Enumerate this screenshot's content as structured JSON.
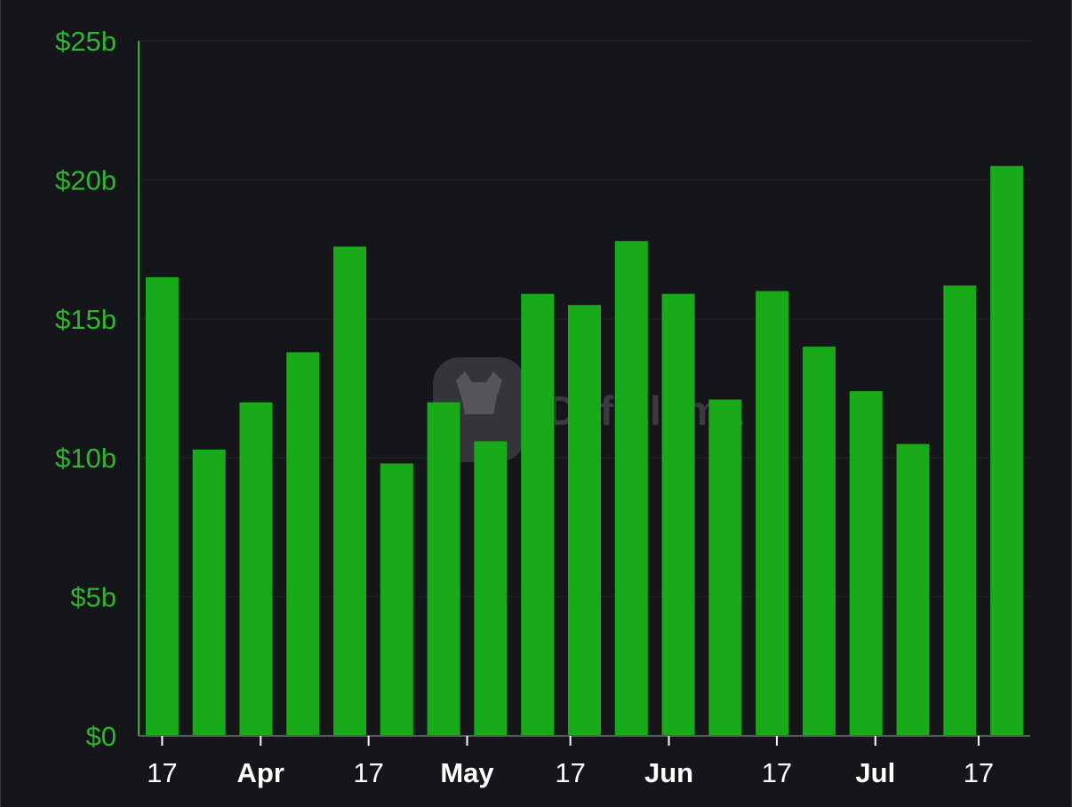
{
  "chart_data": {
    "type": "bar",
    "title": "",
    "xlabel": "",
    "ylabel": "",
    "ylim": [
      0,
      25
    ],
    "y_unit": "billion USD",
    "y_ticks": [
      {
        "value": 0,
        "label": "$0"
      },
      {
        "value": 5,
        "label": "$5b"
      },
      {
        "value": 10,
        "label": "$10b"
      },
      {
        "value": 15,
        "label": "$15b"
      },
      {
        "value": 20,
        "label": "$20b"
      },
      {
        "value": 25,
        "label": "$25b"
      }
    ],
    "x_ticks": [
      {
        "label": "17",
        "bold": false
      },
      {
        "label": "Apr",
        "bold": true
      },
      {
        "label": "17",
        "bold": false
      },
      {
        "label": "May",
        "bold": true
      },
      {
        "label": "17",
        "bold": false
      },
      {
        "label": "Jun",
        "bold": true
      },
      {
        "label": "17",
        "bold": false
      },
      {
        "label": "Jul",
        "bold": true
      },
      {
        "label": "17",
        "bold": false
      }
    ],
    "values": [
      16.5,
      10.3,
      12.0,
      13.8,
      17.6,
      9.8,
      12.0,
      10.6,
      15.9,
      15.5,
      17.8,
      15.9,
      12.1,
      16.0,
      14.0,
      12.4,
      10.5,
      16.2,
      20.5
    ],
    "bar_color": "#18aa18",
    "axis_color": "#2fb52f",
    "grid": true,
    "legend": "none"
  },
  "watermark": {
    "text": "DefiLlama"
  }
}
